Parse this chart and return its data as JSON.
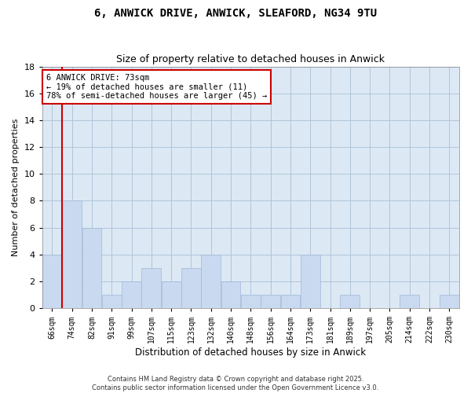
{
  "title1": "6, ANWICK DRIVE, ANWICK, SLEAFORD, NG34 9TU",
  "title2": "Size of property relative to detached houses in Anwick",
  "xlabel": "Distribution of detached houses by size in Anwick",
  "ylabel": "Number of detached properties",
  "bins": [
    "66sqm",
    "74sqm",
    "82sqm",
    "91sqm",
    "99sqm",
    "107sqm",
    "115sqm",
    "123sqm",
    "132sqm",
    "140sqm",
    "148sqm",
    "156sqm",
    "164sqm",
    "173sqm",
    "181sqm",
    "189sqm",
    "197sqm",
    "205sqm",
    "214sqm",
    "222sqm",
    "230sqm"
  ],
  "values": [
    4,
    8,
    6,
    1,
    2,
    3,
    2,
    3,
    4,
    2,
    1,
    1,
    1,
    4,
    0,
    1,
    0,
    0,
    1,
    0,
    1
  ],
  "bar_color": "#c9d9f0",
  "bar_edge_color": "#a0b8d8",
  "grid_color": "#b0c4d8",
  "bg_color": "#dce9f5",
  "annotation_text": "6 ANWICK DRIVE: 73sqm\n← 19% of detached houses are smaller (11)\n78% of semi-detached houses are larger (45) →",
  "vline_color": "#cc0000",
  "ylim": [
    0,
    18
  ],
  "yticks": [
    0,
    2,
    4,
    6,
    8,
    10,
    12,
    14,
    16,
    18
  ],
  "footer1": "Contains HM Land Registry data © Crown copyright and database right 2025.",
  "footer2": "Contains public sector information licensed under the Open Government Licence v3.0."
}
